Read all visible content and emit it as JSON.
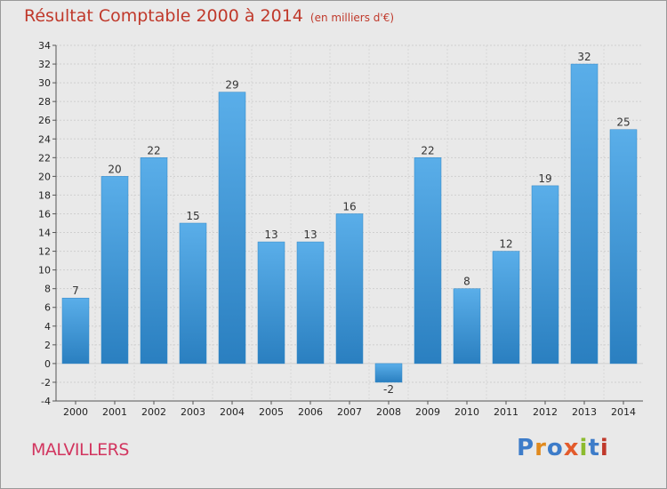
{
  "header": {
    "title": "Résultat Comptable 2000 à 2014",
    "subtitle": "(en milliers d'€)"
  },
  "footer": {
    "commune": "MALVILLERS",
    "brand": "Proxiti"
  },
  "colors": {
    "title": "#c0392b",
    "commune": "#d2355f",
    "bar_top": "#5aaee9",
    "bar_bottom": "#2a7fc0",
    "background": "#e9e9e9",
    "brand_letters": [
      "#3d7cc9",
      "#e08a1e",
      "#3d7cc9",
      "#e35b2c",
      "#8dbb2f",
      "#3d7cc9",
      "#c0392b"
    ]
  },
  "chart_data": {
    "type": "bar",
    "title": "Résultat Comptable 2000 à 2014",
    "subtitle": "(en milliers d'€)",
    "categories": [
      "2000",
      "2001",
      "2002",
      "2003",
      "2004",
      "2005",
      "2006",
      "2007",
      "2008",
      "2009",
      "2010",
      "2011",
      "2012",
      "2013",
      "2014"
    ],
    "values": [
      7,
      20,
      22,
      15,
      29,
      13,
      13,
      16,
      -2,
      22,
      8,
      12,
      19,
      32,
      25
    ],
    "ylim": [
      -4,
      34
    ],
    "yticks": [
      -4,
      -2,
      0,
      2,
      4,
      6,
      8,
      10,
      12,
      14,
      16,
      18,
      20,
      22,
      24,
      26,
      28,
      30,
      32,
      34
    ],
    "grid": true,
    "data_labels": true
  }
}
